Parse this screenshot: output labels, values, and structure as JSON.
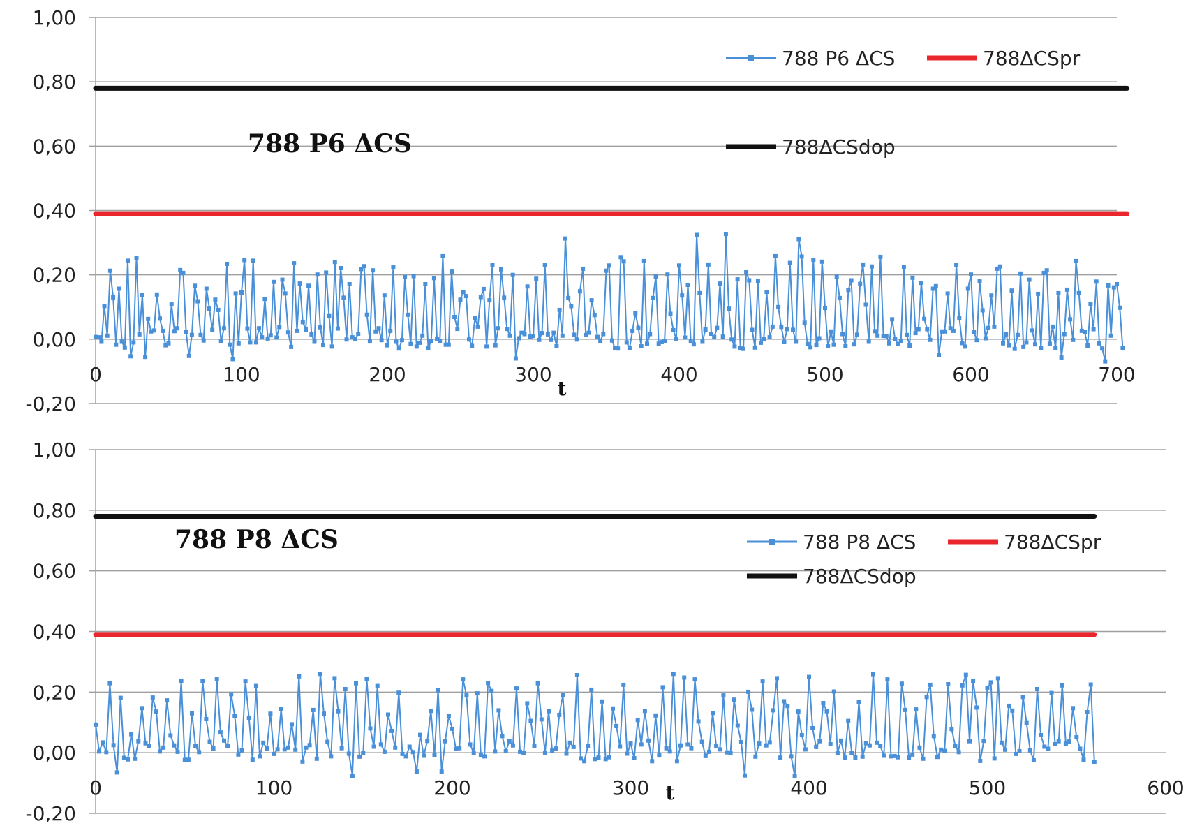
{
  "colors": {
    "series": "#4a90d9",
    "pr": "#e8262c",
    "dop": "#111111",
    "grid": "#a0a0a0"
  },
  "chart_data": [
    {
      "type": "line",
      "title": "788 P6 ΔCS",
      "xlabel": "t",
      "ylabel": "",
      "xlim": [
        0,
        700
      ],
      "ylim": [
        -0.2,
        1.0
      ],
      "xticks": [
        0,
        100,
        200,
        300,
        400,
        500,
        600,
        700
      ],
      "yticks": [
        -0.2,
        0.0,
        0.2,
        0.4,
        0.6,
        0.8,
        1.0
      ],
      "ytick_labels": [
        "-0,20",
        "0,00",
        "0,20",
        "0,40",
        "0,60",
        "0,80",
        "1,00"
      ],
      "xtick_labels": [
        "0",
        "100",
        "200",
        "300",
        "400",
        "500",
        "600",
        "700"
      ],
      "grid": "horizontal",
      "legend_position": "top-right",
      "series": [
        {
          "name": "788 P6 ΔCS",
          "kind": "markers-line",
          "color": "#4a90d9",
          "x_start": 0,
          "x_step": 2,
          "count": 353,
          "seed": 6,
          "y_min_observed": -0.07,
          "y_max_observed": 0.34,
          "y_typical_low": 0.0,
          "y_typical_high": 0.25
        },
        {
          "name": "788ΔCSpr",
          "kind": "constant",
          "color": "#e8262c",
          "x": [
            0,
            707
          ],
          "y": 0.39
        },
        {
          "name": "788ΔCSdop",
          "kind": "constant",
          "color": "#111111",
          "x": [
            0,
            707
          ],
          "y": 0.78
        }
      ]
    },
    {
      "type": "line",
      "title": "788 P8 ΔCS",
      "xlabel": "t",
      "ylabel": "",
      "xlim": [
        0,
        600
      ],
      "ylim": [
        -0.2,
        1.0
      ],
      "xticks": [
        0,
        100,
        200,
        300,
        400,
        500,
        600
      ],
      "yticks": [
        -0.2,
        0.0,
        0.2,
        0.4,
        0.6,
        0.8,
        1.0
      ],
      "ytick_labels": [
        "-0,20",
        "0,00",
        "0,20",
        "0,40",
        "0,60",
        "0,80",
        "1,00"
      ],
      "xtick_labels": [
        "0",
        "100",
        "200",
        "300",
        "400",
        "500",
        "600"
      ],
      "grid": "horizontal",
      "legend_position": "top-right",
      "series": [
        {
          "name": "788 P8 ΔCS",
          "kind": "markers-line",
          "color": "#4a90d9",
          "x_start": 0,
          "x_step": 2,
          "count": 281,
          "seed": 8,
          "y_min_observed": -0.08,
          "y_max_observed": 0.3,
          "y_typical_low": 0.0,
          "y_typical_high": 0.25
        },
        {
          "name": "788ΔCSpr",
          "kind": "constant",
          "color": "#e8262c",
          "x": [
            0,
            560
          ],
          "y": 0.39
        },
        {
          "name": "788ΔCSdop",
          "kind": "constant",
          "color": "#111111",
          "x": [
            0,
            560
          ],
          "y": 0.78
        }
      ]
    }
  ]
}
